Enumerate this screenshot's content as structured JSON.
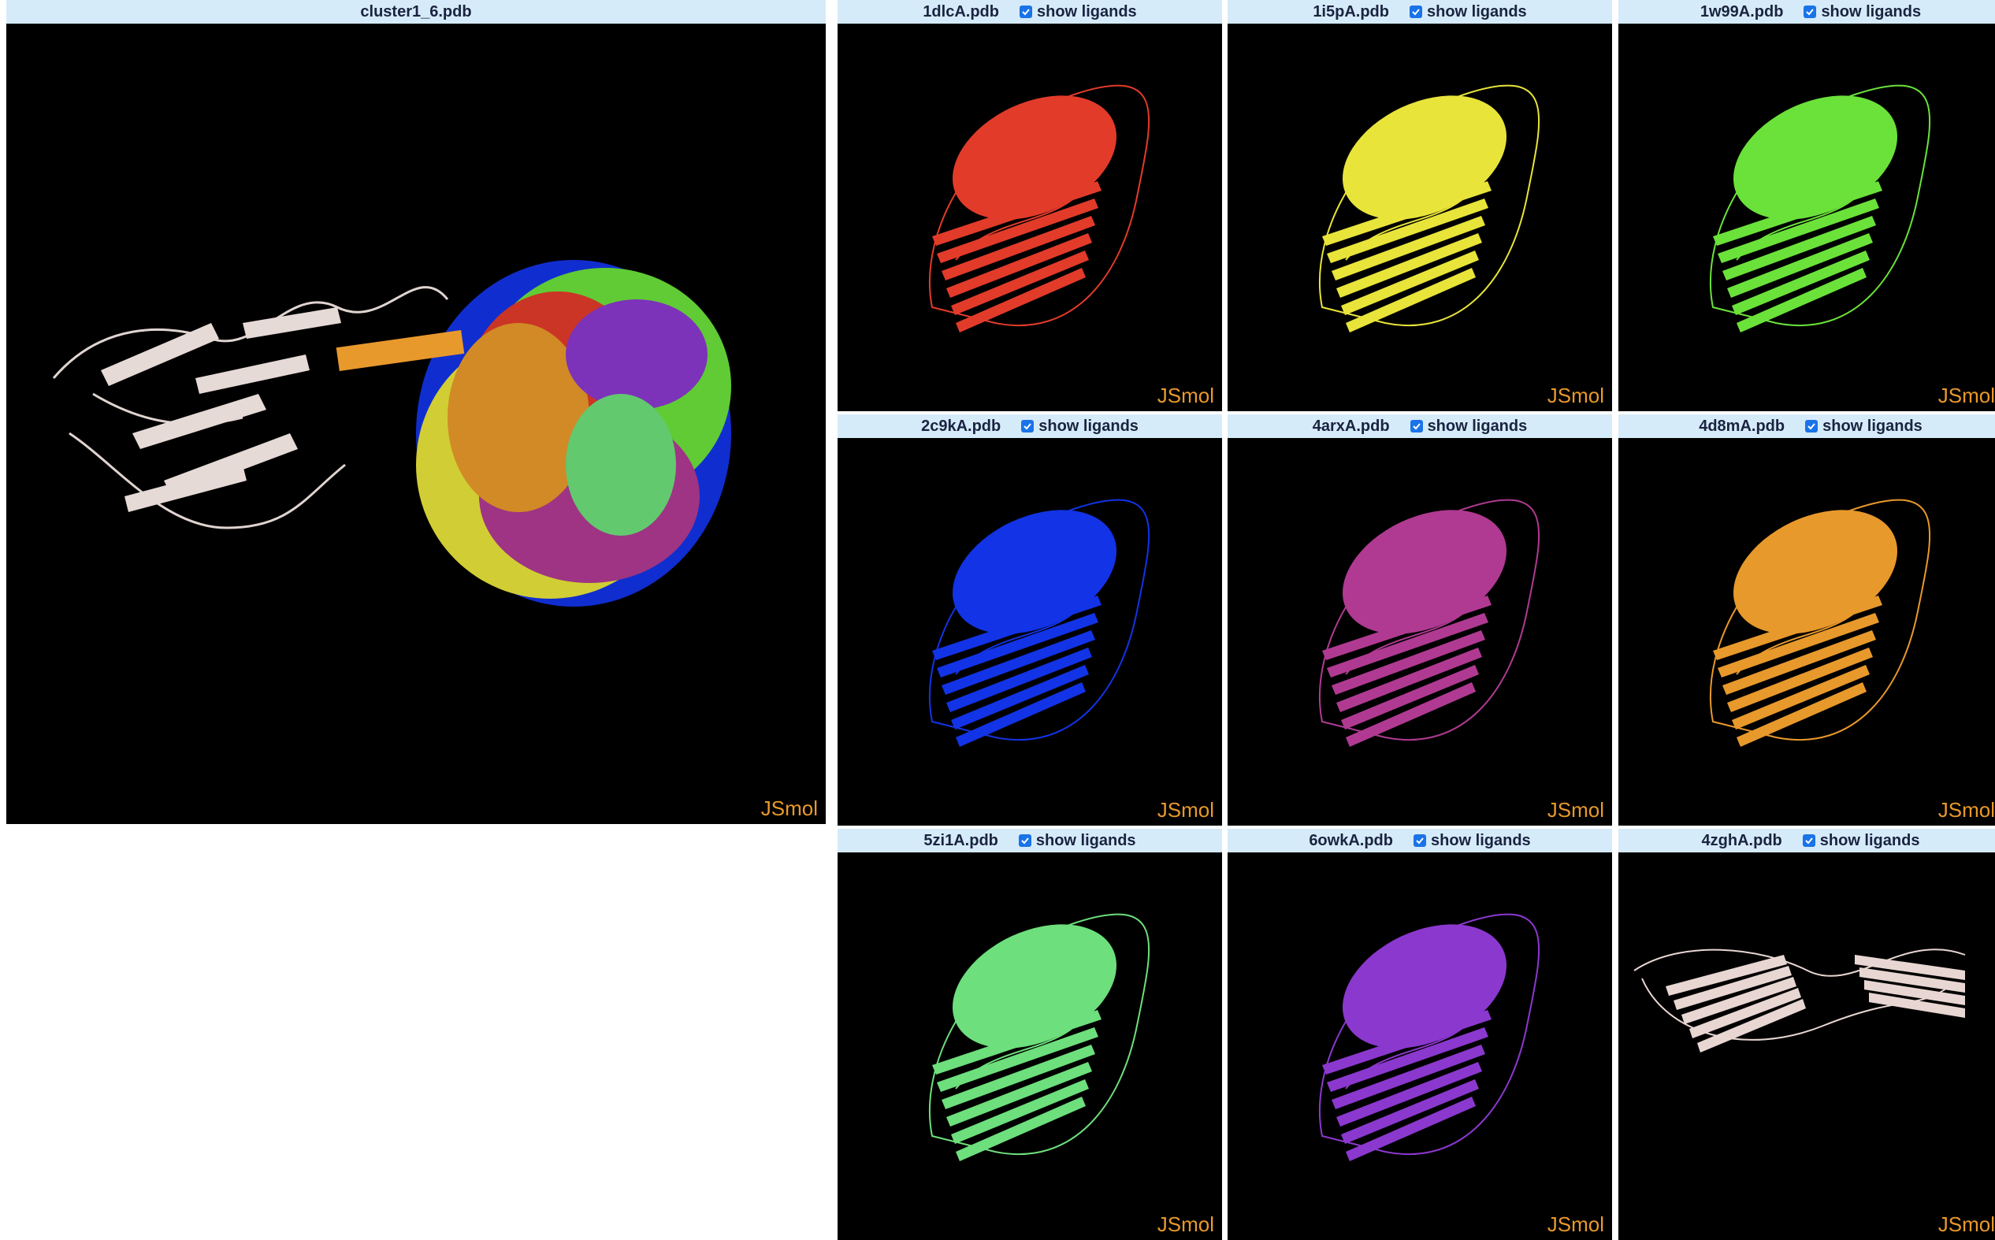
{
  "main": {
    "title": "cluster1_6.pdb",
    "jsmol": "JSmol"
  },
  "ligand_label": "show ligands",
  "panels": [
    {
      "title": "1dlcA.pdb",
      "color": "#e23b2a",
      "checked": true,
      "jsmol": "JSmol"
    },
    {
      "title": "1i5pA.pdb",
      "color": "#e8e43a",
      "checked": true,
      "jsmol": "JSmol"
    },
    {
      "title": "1w99A.pdb",
      "color": "#6be23a",
      "checked": true,
      "jsmol": "JSmol"
    },
    {
      "title": "2c9kA.pdb",
      "color": "#1233e6",
      "checked": true,
      "jsmol": "JSmol"
    },
    {
      "title": "4arxA.pdb",
      "color": "#b03a92",
      "checked": true,
      "jsmol": "JSmol"
    },
    {
      "title": "4d8mA.pdb",
      "color": "#e8992b",
      "checked": true,
      "jsmol": "JSmol"
    },
    {
      "title": "5zi1A.pdb",
      "color": "#6ddf7c",
      "checked": true,
      "jsmol": "JSmol"
    },
    {
      "title": "6owkA.pdb",
      "color": "#8b38cf",
      "checked": true,
      "jsmol": "JSmol"
    },
    {
      "title": "4zghA.pdb",
      "color": "#e8d6d2",
      "checked": true,
      "jsmol": "JSmol"
    }
  ]
}
